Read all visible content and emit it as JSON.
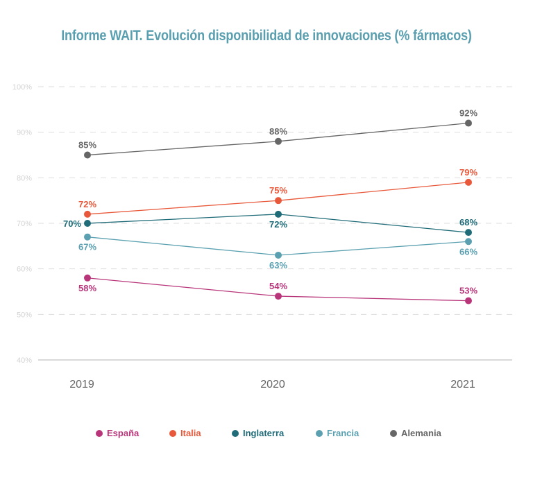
{
  "chart_data": {
    "type": "line",
    "title": "Informe WAIT. Evolución disponibilidad de innovaciones (% fármacos)",
    "xlabel": "",
    "ylabel": "",
    "x": [
      "2019",
      "2020",
      "2021"
    ],
    "ylim": [
      40,
      100
    ],
    "yticks": [
      40,
      50,
      60,
      70,
      80,
      90,
      100
    ],
    "ytick_labels": [
      "40%",
      "50%",
      "60%",
      "70%",
      "80%",
      "90%",
      "100%"
    ],
    "grid": true,
    "legend_position": "bottom",
    "series": [
      {
        "name": "España",
        "color": "#b8357a",
        "values": [
          58,
          54,
          53
        ],
        "labels": [
          "58%",
          "54%",
          "53%"
        ],
        "label_pos": [
          "below",
          "above",
          "above"
        ]
      },
      {
        "name": "Italia",
        "color": "#e8583a",
        "values": [
          72,
          75,
          79
        ],
        "labels": [
          "72%",
          "75%",
          "79%"
        ],
        "label_pos": [
          "above",
          "above",
          "above"
        ]
      },
      {
        "name": "Inglaterra",
        "color": "#1f6b78",
        "values": [
          70,
          72,
          68
        ],
        "labels": [
          "70%",
          "72%",
          "68%"
        ],
        "label_pos": [
          "left",
          "below",
          "above"
        ]
      },
      {
        "name": "Francia",
        "color": "#5aa0b0",
        "values": [
          67,
          63,
          66
        ],
        "labels": [
          "67%",
          "63%",
          "66%"
        ],
        "label_pos": [
          "below",
          "below",
          "below"
        ]
      },
      {
        "name": "Alemania",
        "color": "#666666",
        "values": [
          85,
          88,
          92
        ],
        "labels": [
          "85%",
          "88%",
          "92%"
        ],
        "label_pos": [
          "above",
          "above",
          "above"
        ]
      }
    ]
  }
}
